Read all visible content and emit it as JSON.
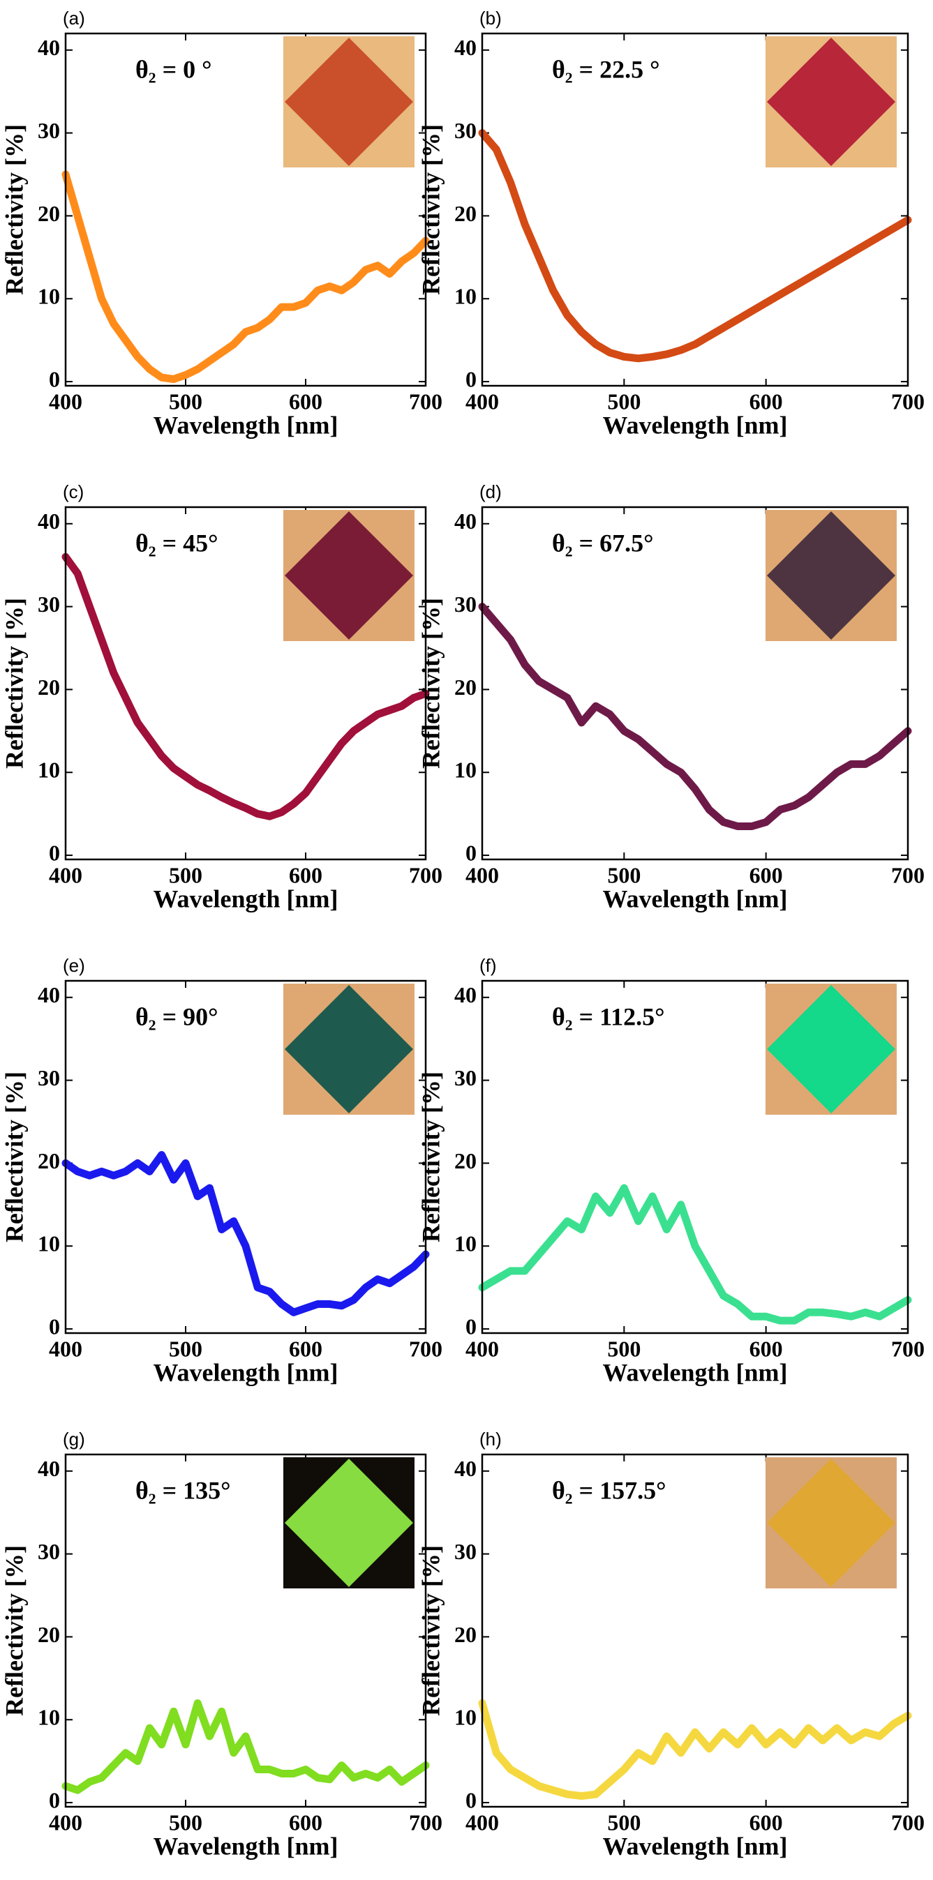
{
  "chart_data": [
    {
      "type": "line",
      "label": "(a)",
      "annotation": "θ₂ = 0 °",
      "xlabel": "Wavelength [nm]",
      "ylabel": "Reflectivity [%]",
      "color": "#ff8c1a",
      "inset_colors": [
        "#e9b97e",
        "#c9502a"
      ],
      "x": [
        400,
        410,
        420,
        430,
        440,
        450,
        460,
        470,
        480,
        490,
        500,
        510,
        520,
        530,
        540,
        550,
        560,
        570,
        580,
        590,
        600,
        610,
        620,
        630,
        640,
        650,
        660,
        670,
        680,
        690,
        700
      ],
      "values": [
        25,
        20,
        15,
        10,
        7,
        5,
        3,
        1.5,
        0.5,
        0.3,
        0.8,
        1.5,
        2.5,
        3.5,
        4.5,
        6,
        6.5,
        7.5,
        9,
        9,
        9.5,
        11,
        11.5,
        11,
        12,
        13.5,
        14,
        13,
        14.5,
        15.5,
        17
      ],
      "xlim": [
        400,
        700
      ],
      "ylim": [
        -0.5,
        42
      ],
      "xticks": [
        400,
        500,
        600,
        700
      ],
      "yticks": [
        0,
        10,
        20,
        30,
        40
      ]
    },
    {
      "type": "line",
      "label": "(b)",
      "annotation": "θ₂ = 22.5 °",
      "xlabel": "Wavelength [nm]",
      "ylabel": "Reflectivity [%]",
      "color": "#d44a14",
      "inset_colors": [
        "#e9b97e",
        "#b8263a"
      ],
      "x": [
        400,
        410,
        420,
        430,
        440,
        450,
        460,
        470,
        480,
        490,
        500,
        510,
        520,
        530,
        540,
        550,
        560,
        570,
        580,
        590,
        600,
        610,
        620,
        630,
        640,
        650,
        660,
        670,
        680,
        690,
        700
      ],
      "values": [
        30,
        28,
        24,
        19,
        15,
        11,
        8,
        6,
        4.5,
        3.5,
        3,
        2.8,
        3,
        3.3,
        3.8,
        4.5,
        5.5,
        6.5,
        7.5,
        8.5,
        9.5,
        10.5,
        11.5,
        12.5,
        13.5,
        14.5,
        15.5,
        16.5,
        17.5,
        18.5,
        19.5
      ],
      "xlim": [
        400,
        700
      ],
      "ylim": [
        -0.5,
        42
      ],
      "xticks": [
        400,
        500,
        600,
        700
      ],
      "yticks": [
        0,
        10,
        20,
        30,
        40
      ]
    },
    {
      "type": "line",
      "label": "(c)",
      "annotation": "θ₂ = 45°",
      "xlabel": "Wavelength [nm]",
      "ylabel": "Reflectivity [%]",
      "color": "#a0103a",
      "inset_colors": [
        "#dfa872",
        "#7a1c36"
      ],
      "x": [
        400,
        410,
        420,
        430,
        440,
        450,
        460,
        470,
        480,
        490,
        500,
        510,
        520,
        530,
        540,
        550,
        560,
        570,
        580,
        590,
        600,
        610,
        620,
        630,
        640,
        650,
        660,
        670,
        680,
        690,
        700
      ],
      "values": [
        36,
        34,
        30,
        26,
        22,
        19,
        16,
        14,
        12,
        10.5,
        9.5,
        8.5,
        7.8,
        7,
        6.3,
        5.7,
        5,
        4.7,
        5.2,
        6.2,
        7.5,
        9.5,
        11.5,
        13.5,
        15,
        16,
        17,
        17.5,
        18,
        19,
        19.5
      ],
      "xlim": [
        400,
        700
      ],
      "ylim": [
        -0.5,
        42
      ],
      "xticks": [
        400,
        500,
        600,
        700
      ],
      "yticks": [
        0,
        10,
        20,
        30,
        40
      ]
    },
    {
      "type": "line",
      "label": "(d)",
      "annotation": "θ₂ = 67.5°",
      "xlabel": "Wavelength [nm]",
      "ylabel": "Reflectivity [%]",
      "color": "#6e1a48",
      "inset_colors": [
        "#dfa872",
        "#4e3440"
      ],
      "x": [
        400,
        410,
        420,
        430,
        440,
        450,
        460,
        470,
        480,
        490,
        500,
        510,
        520,
        530,
        540,
        550,
        560,
        570,
        580,
        590,
        600,
        610,
        620,
        630,
        640,
        650,
        660,
        670,
        680,
        690,
        700
      ],
      "values": [
        30,
        28,
        26,
        23,
        21,
        20,
        19,
        16,
        18,
        17,
        15,
        14,
        12.5,
        11,
        10,
        8,
        5.5,
        4,
        3.5,
        3.5,
        4,
        5.5,
        6,
        7,
        8.5,
        10,
        11,
        11,
        12,
        13.5,
        15
      ],
      "xlim": [
        400,
        700
      ],
      "ylim": [
        -0.5,
        42
      ],
      "xticks": [
        400,
        500,
        600,
        700
      ],
      "yticks": [
        0,
        10,
        20,
        30,
        40
      ]
    },
    {
      "type": "line",
      "label": "(e)",
      "annotation": "θ₂ = 90°",
      "xlabel": "Wavelength [nm]",
      "ylabel": "Reflectivity [%]",
      "color": "#1a1aee",
      "inset_colors": [
        "#dfa872",
        "#1f5a4e"
      ],
      "x": [
        400,
        410,
        420,
        430,
        440,
        450,
        460,
        470,
        480,
        490,
        500,
        510,
        520,
        530,
        540,
        550,
        560,
        570,
        580,
        590,
        600,
        610,
        620,
        630,
        640,
        650,
        660,
        670,
        680,
        690,
        700
      ],
      "values": [
        20,
        19,
        18.5,
        19,
        18.5,
        19,
        20,
        19,
        21,
        18,
        20,
        16,
        17,
        12,
        13,
        10,
        5,
        4.5,
        3,
        2,
        2.5,
        3,
        3,
        2.8,
        3.5,
        5,
        6,
        5.5,
        6.5,
        7.5,
        9
      ],
      "xlim": [
        400,
        700
      ],
      "ylim": [
        -0.5,
        42
      ],
      "xticks": [
        400,
        500,
        600,
        700
      ],
      "yticks": [
        0,
        10,
        20,
        30,
        40
      ]
    },
    {
      "type": "line",
      "label": "(f)",
      "annotation": "θ₂ = 112.5°",
      "xlabel": "Wavelength [nm]",
      "ylabel": "Reflectivity [%]",
      "color": "#3ae090",
      "inset_colors": [
        "#dfa872",
        "#14d88a"
      ],
      "x": [
        400,
        410,
        420,
        430,
        440,
        450,
        460,
        470,
        480,
        490,
        500,
        510,
        520,
        530,
        540,
        550,
        560,
        570,
        580,
        590,
        600,
        610,
        620,
        630,
        640,
        650,
        660,
        670,
        680,
        690,
        700
      ],
      "values": [
        5,
        6,
        7,
        7,
        9,
        11,
        13,
        12,
        16,
        14,
        17,
        13,
        16,
        12,
        15,
        10,
        7,
        4,
        3,
        1.5,
        1.5,
        1,
        1,
        2,
        2,
        1.8,
        1.5,
        2,
        1.5,
        2.5,
        3.5
      ],
      "xlim": [
        400,
        700
      ],
      "ylim": [
        -0.5,
        42
      ],
      "xticks": [
        400,
        500,
        600,
        700
      ],
      "yticks": [
        0,
        10,
        20,
        30,
        40
      ]
    },
    {
      "type": "line",
      "label": "(g)",
      "annotation": "θ₂ = 135°",
      "xlabel": "Wavelength [nm]",
      "ylabel": "Reflectivity [%]",
      "color": "#80dd20",
      "inset_colors": [
        "#100c08",
        "#86dc40"
      ],
      "x": [
        400,
        410,
        420,
        430,
        440,
        450,
        460,
        470,
        480,
        490,
        500,
        510,
        520,
        530,
        540,
        550,
        560,
        570,
        580,
        590,
        600,
        610,
        620,
        630,
        640,
        650,
        660,
        670,
        680,
        690,
        700
      ],
      "values": [
        2,
        1.5,
        2.5,
        3,
        4.5,
        6,
        5,
        9,
        7,
        11,
        7,
        12,
        8,
        11,
        6,
        8,
        4,
        4,
        3.5,
        3.5,
        4,
        3,
        2.8,
        4.5,
        3,
        3.5,
        3,
        4,
        2.5,
        3.5,
        4.5
      ],
      "xlim": [
        400,
        700
      ],
      "ylim": [
        -0.5,
        42
      ],
      "xticks": [
        400,
        500,
        600,
        700
      ],
      "yticks": [
        0,
        10,
        20,
        30,
        40
      ]
    },
    {
      "type": "line",
      "label": "(h)",
      "annotation": "θ₂ = 157.5°",
      "xlabel": "Wavelength [nm]",
      "ylabel": "Reflectivity [%]",
      "color": "#f5d840",
      "inset_colors": [
        "#d9a474",
        "#e0a832"
      ],
      "x": [
        400,
        410,
        420,
        430,
        440,
        450,
        460,
        470,
        480,
        490,
        500,
        510,
        520,
        530,
        540,
        550,
        560,
        570,
        580,
        590,
        600,
        610,
        620,
        630,
        640,
        650,
        660,
        670,
        680,
        690,
        700
      ],
      "values": [
        12,
        6,
        4,
        3,
        2,
        1.5,
        1,
        0.8,
        1,
        2.5,
        4,
        6,
        5,
        8,
        6,
        8.5,
        6.5,
        8.5,
        7,
        9,
        7,
        8.5,
        7,
        9,
        7.5,
        9,
        7.5,
        8.5,
        8,
        9.5,
        10.5
      ],
      "xlim": [
        400,
        700
      ],
      "ylim": [
        -0.5,
        42
      ],
      "xticks": [
        400,
        500,
        600,
        700
      ],
      "yticks": [
        0,
        10,
        20,
        30,
        40
      ]
    }
  ]
}
